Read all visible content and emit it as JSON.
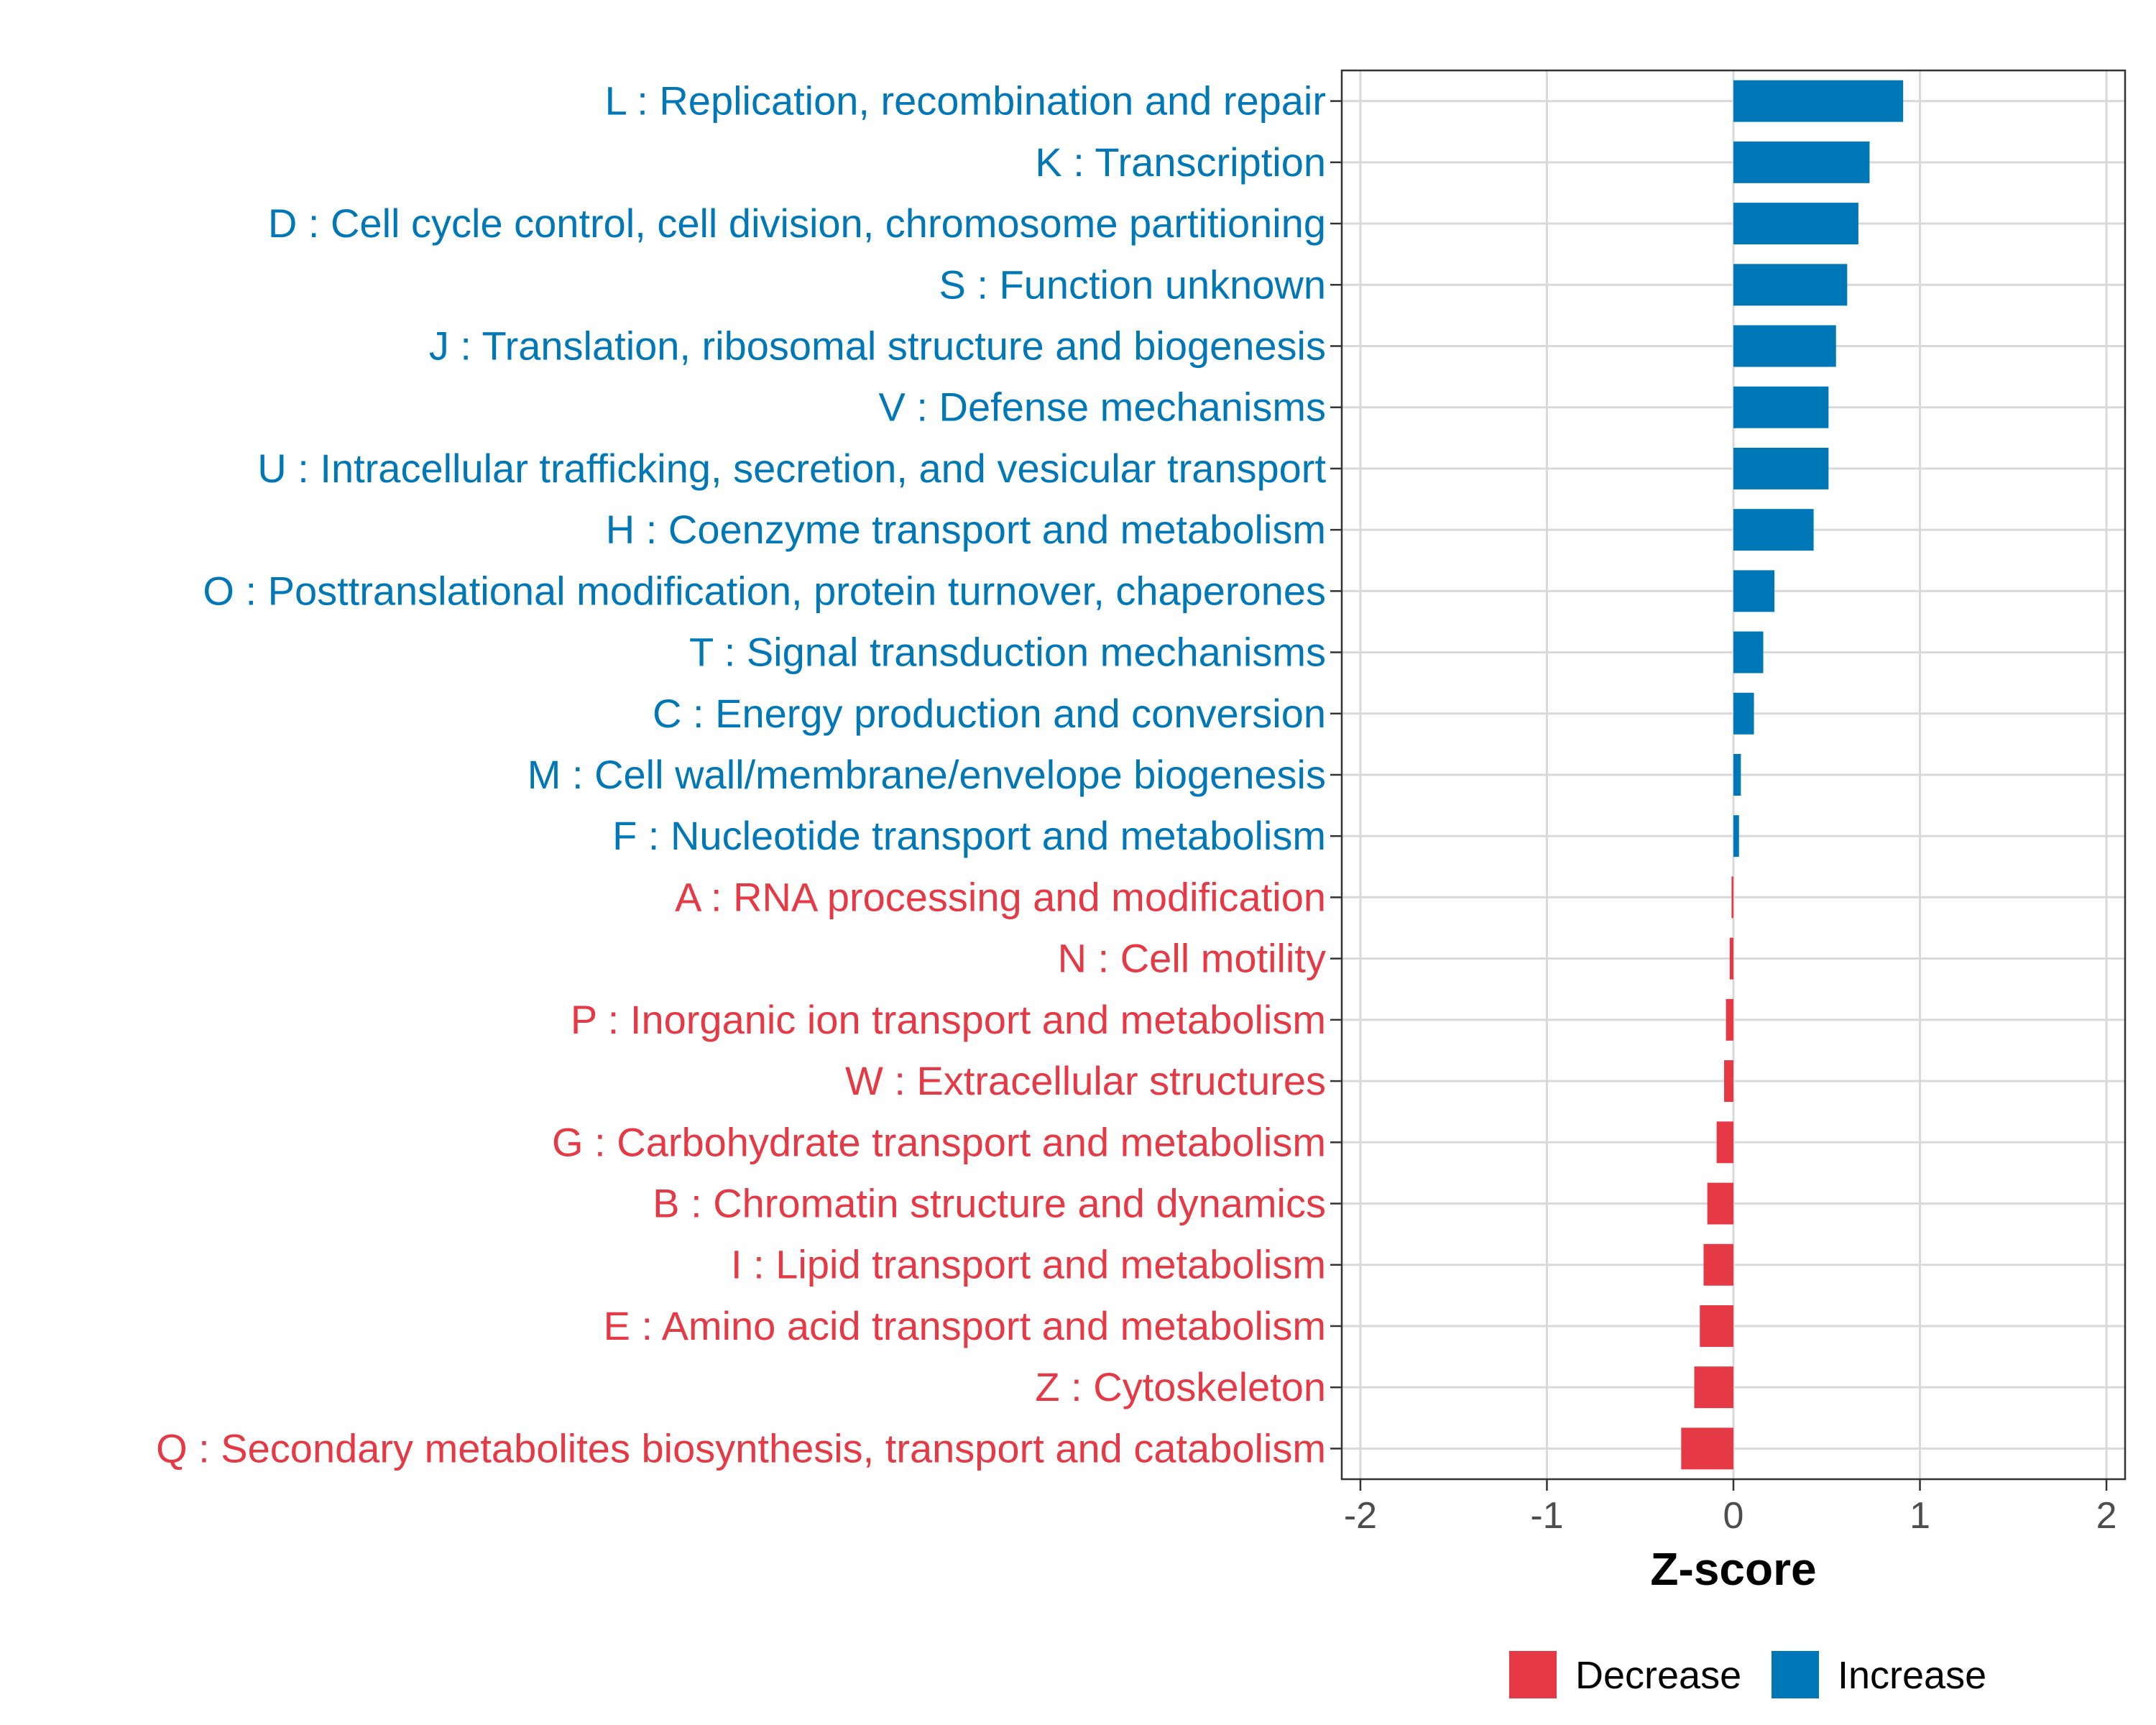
{
  "chart_data": {
    "type": "bar",
    "orientation": "horizontal",
    "title": "",
    "xlabel": "Z-score",
    "ylabel": "",
    "xlim": [
      -2.1,
      2.1
    ],
    "xticks": [
      -2,
      -1,
      0,
      1,
      2
    ],
    "xtick_labels": [
      "-2",
      "-1",
      "0",
      "1",
      "2"
    ],
    "grid": true,
    "legend_position": "bottom",
    "colors": {
      "Increase": "#0077b6",
      "Decrease": "#e63946"
    },
    "legend": [
      {
        "name": "Decrease",
        "color": "#e63946"
      },
      {
        "name": "Increase",
        "color": "#0077b6"
      }
    ],
    "categories": [
      "L : Replication, recombination and repair",
      "K : Transcription",
      "D : Cell cycle control, cell division, chromosome partitioning",
      "S : Function unknown",
      "J : Translation, ribosomal structure and biogenesis",
      "V : Defense mechanisms",
      "U : Intracellular trafficking, secretion, and vesicular transport",
      "H : Coenzyme transport and metabolism",
      "O : Posttranslational modification, protein turnover, chaperones",
      "T : Signal transduction mechanisms",
      "C : Energy production and conversion",
      "M : Cell wall/membrane/envelope biogenesis",
      "F : Nucleotide transport and metabolism",
      "A : RNA processing and modification",
      "N : Cell motility",
      "P : Inorganic ion transport and metabolism",
      "W : Extracellular structures",
      "G : Carbohydrate transport and metabolism",
      "B : Chromatin structure and dynamics",
      "I : Lipid transport and metabolism",
      "E : Amino acid transport and metabolism",
      "Z : Cytoskeleton",
      "Q : Secondary metabolites biosynthesis, transport and catabolism"
    ],
    "values": [
      0.91,
      0.73,
      0.67,
      0.61,
      0.55,
      0.51,
      0.51,
      0.43,
      0.22,
      0.16,
      0.11,
      0.04,
      0.03,
      -0.01,
      -0.02,
      -0.04,
      -0.05,
      -0.09,
      -0.14,
      -0.16,
      -0.18,
      -0.21,
      -0.28
    ],
    "groups": [
      "Increase",
      "Increase",
      "Increase",
      "Increase",
      "Increase",
      "Increase",
      "Increase",
      "Increase",
      "Increase",
      "Increase",
      "Increase",
      "Increase",
      "Increase",
      "Decrease",
      "Decrease",
      "Decrease",
      "Decrease",
      "Decrease",
      "Decrease",
      "Decrease",
      "Decrease",
      "Decrease",
      "Decrease"
    ]
  }
}
